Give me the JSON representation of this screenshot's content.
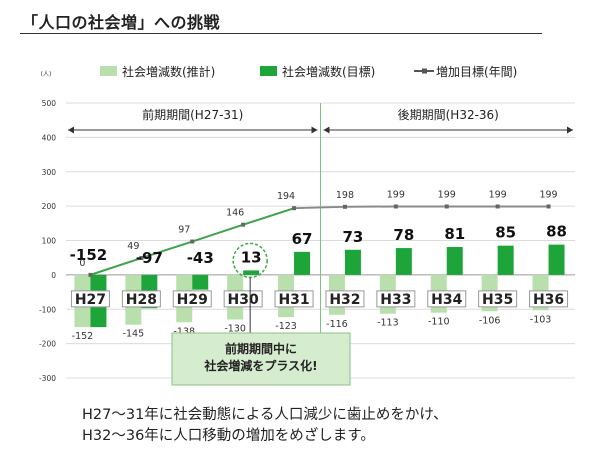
{
  "page": {
    "title": "「人口の社会増」への挑戦",
    "footnote_lines": [
      "H27～31年に社会動態による人口減少に歯止めをかけ、",
      "H32～36年に人口移動の増加をめざします。"
    ]
  },
  "chart_data": {
    "type": "bar",
    "y_unit": "(人)",
    "ylim": [
      -300,
      500
    ],
    "yticks": [
      -300,
      -200,
      -100,
      0,
      100,
      200,
      300,
      400,
      500
    ],
    "categories": [
      "H27",
      "H28",
      "H29",
      "H30",
      "H31",
      "H32",
      "H33",
      "H34",
      "H35",
      "H36"
    ],
    "series": [
      {
        "name": "社会増減数(推計)",
        "kind": "bar",
        "color": "#b9dfad",
        "values": [
          -152,
          -145,
          -138,
          -130,
          -123,
          -116,
          -113,
          -110,
          -106,
          -103
        ]
      },
      {
        "name": "社会増減数(目標)",
        "kind": "bar",
        "color": "#1ea53a",
        "values": [
          -152,
          -97,
          -43,
          13,
          67,
          73,
          78,
          81,
          85,
          88
        ]
      },
      {
        "name": "増加目標(年間)",
        "kind": "line",
        "color": "#3fa34d",
        "color_after": "#8a8a8a",
        "values": [
          0,
          49,
          97,
          146,
          194,
          198,
          199,
          199,
          199,
          199
        ]
      }
    ],
    "periods": [
      {
        "label": "前期期間(H27-31)"
      },
      {
        "label": "後期期間(H32-36)"
      }
    ],
    "callout": "前期期間中に\n社会増減をプラス化!",
    "grid": true,
    "legend": "top"
  }
}
